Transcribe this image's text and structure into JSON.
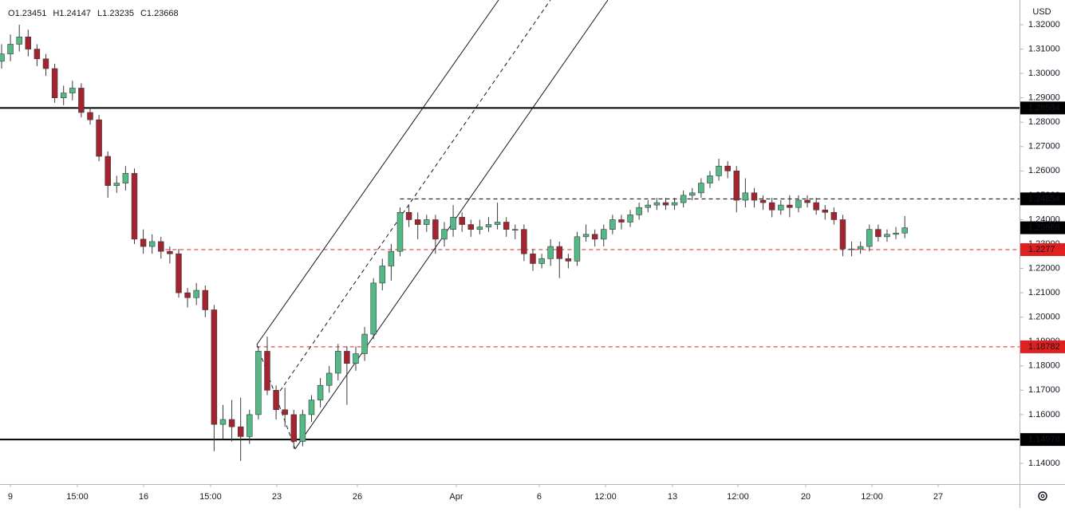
{
  "chart_data": {
    "type": "candlestick",
    "currency": "USD",
    "ohlc_labels": [
      "O",
      "H",
      "L",
      "C"
    ],
    "up_color": "#53b987",
    "down_color": "#a3232f",
    "wick_color": "#3a3a3a",
    "xlim": [
      -0.18,
      114.96
    ],
    "ylim": [
      1.13149,
      1.33015
    ],
    "xticks": [
      {
        "value": 0.99,
        "label": "9"
      },
      {
        "value": 8.56,
        "label": "15:00"
      },
      {
        "value": 16.04,
        "label": "16"
      },
      {
        "value": 23.6,
        "label": "15:00"
      },
      {
        "value": 31.08,
        "label": "23"
      },
      {
        "value": 40.18,
        "label": "26"
      },
      {
        "value": 51.35,
        "label": "Apr"
      },
      {
        "value": 60.72,
        "label": "6"
      },
      {
        "value": 68.2,
        "label": "12:00"
      },
      {
        "value": 75.77,
        "label": "13"
      },
      {
        "value": 83.15,
        "label": "12:00"
      },
      {
        "value": 90.81,
        "label": "20"
      },
      {
        "value": 98.29,
        "label": "12:00"
      },
      {
        "value": 105.77,
        "label": "27"
      }
    ],
    "yticks": [
      {
        "value": 1.32,
        "label": "1.32000"
      },
      {
        "value": 1.31,
        "label": "1.31000"
      },
      {
        "value": 1.3,
        "label": "1.30000"
      },
      {
        "value": 1.29,
        "label": "1.29000"
      },
      {
        "value": 1.28,
        "label": "1.28000"
      },
      {
        "value": 1.27,
        "label": "1.27000"
      },
      {
        "value": 1.26,
        "label": "1.26000"
      },
      {
        "value": 1.25,
        "label": "1.25000"
      },
      {
        "value": 1.24,
        "label": "1.24000"
      },
      {
        "value": 1.23,
        "label": "1.23000"
      },
      {
        "value": 1.22,
        "label": "1.22000"
      },
      {
        "value": 1.21,
        "label": "1.21000"
      },
      {
        "value": 1.2,
        "label": "1.20000"
      },
      {
        "value": 1.19,
        "label": "1.19000"
      },
      {
        "value": 1.18,
        "label": "1.18000"
      },
      {
        "value": 1.17,
        "label": "1.17000"
      },
      {
        "value": 1.16,
        "label": "1.16000"
      },
      {
        "value": 1.15,
        "label": "1.15000"
      },
      {
        "value": 1.14,
        "label": "1.14000"
      }
    ],
    "x": [
      0,
      1,
      2,
      3,
      4,
      5,
      6,
      7,
      8,
      9,
      10,
      11,
      12,
      13,
      14,
      15,
      16,
      17,
      18,
      19,
      20,
      21,
      22,
      23,
      24,
      25,
      26,
      27,
      28,
      29,
      30,
      31,
      32,
      33,
      34,
      35,
      36,
      37,
      38,
      39,
      40,
      41,
      42,
      43,
      44,
      45,
      46,
      47,
      48,
      49,
      50,
      51,
      52,
      53,
      54,
      55,
      56,
      57,
      58,
      59,
      60,
      61,
      62,
      63,
      64,
      65,
      66,
      67,
      68,
      69,
      70,
      71,
      72,
      73,
      74,
      75,
      76,
      77,
      78,
      79,
      80,
      81,
      82,
      83,
      84,
      85,
      86,
      87,
      88,
      89,
      90,
      91,
      92,
      93,
      94,
      95,
      96,
      97,
      98,
      99,
      100,
      101,
      102
    ],
    "open": [
      1.305,
      1.308,
      1.312,
      1.315,
      1.31,
      1.306,
      1.302,
      1.29,
      1.292,
      1.294,
      1.284,
      1.281,
      1.266,
      1.254,
      1.255,
      1.259,
      1.232,
      1.229,
      1.231,
      1.227,
      1.226,
      1.21,
      1.208,
      1.211,
      1.203,
      1.156,
      1.158,
      1.155,
      1.151,
      1.16,
      1.186,
      1.17,
      1.162,
      1.16,
      1.149,
      1.16,
      1.166,
      1.172,
      1.177,
      1.186,
      1.181,
      1.185,
      1.193,
      1.214,
      1.221,
      1.227,
      1.243,
      1.24,
      1.238,
      1.24,
      1.232,
      1.236,
      1.241,
      1.238,
      1.236,
      1.237,
      1.238,
      1.239,
      1.236,
      1.236,
      1.226,
      1.222,
      1.224,
      1.229,
      1.224,
      1.223,
      1.233,
      1.234,
      1.232,
      1.236,
      1.24,
      1.239,
      1.242,
      1.245,
      1.246,
      1.247,
      1.246,
      1.247,
      1.25,
      1.251,
      1.255,
      1.258,
      1.262,
      1.26,
      1.248,
      1.251,
      1.248,
      1.247,
      1.244,
      1.246,
      1.245,
      1.248,
      1.247,
      1.244,
      1.243,
      1.24,
      1.228,
      1.228,
      1.229,
      1.236,
      1.233,
      1.234,
      1.23451
    ],
    "high": [
      1.312,
      1.316,
      1.32,
      1.318,
      1.312,
      1.308,
      1.304,
      1.295,
      1.297,
      1.296,
      1.286,
      1.283,
      1.268,
      1.258,
      1.262,
      1.261,
      1.236,
      1.234,
      1.233,
      1.229,
      1.228,
      1.212,
      1.214,
      1.213,
      1.205,
      1.164,
      1.166,
      1.167,
      1.162,
      1.188,
      1.192,
      1.172,
      1.171,
      1.162,
      1.162,
      1.168,
      1.175,
      1.18,
      1.189,
      1.188,
      1.188,
      1.196,
      1.216,
      1.224,
      1.23,
      1.245,
      1.246,
      1.243,
      1.242,
      1.242,
      1.239,
      1.246,
      1.243,
      1.24,
      1.24,
      1.241,
      1.247,
      1.241,
      1.238,
      1.238,
      1.228,
      1.226,
      1.232,
      1.231,
      1.226,
      1.235,
      1.238,
      1.236,
      1.238,
      1.242,
      1.242,
      1.244,
      1.247,
      1.248,
      1.249,
      1.249,
      1.249,
      1.252,
      1.253,
      1.257,
      1.26,
      1.265,
      1.264,
      1.262,
      1.257,
      1.253,
      1.25,
      1.249,
      1.248,
      1.25,
      1.25,
      1.25,
      1.249,
      1.246,
      1.245,
      1.242,
      1.231,
      1.231,
      1.238,
      1.238,
      1.236,
      1.237,
      1.24147
    ],
    "low": [
      1.302,
      1.305,
      1.309,
      1.307,
      1.303,
      1.299,
      1.288,
      1.287,
      1.289,
      1.282,
      1.279,
      1.264,
      1.249,
      1.251,
      1.252,
      1.23,
      1.226,
      1.226,
      1.224,
      1.222,
      1.208,
      1.204,
      1.205,
      1.2,
      1.145,
      1.15,
      1.149,
      1.141,
      1.148,
      1.158,
      1.168,
      1.158,
      1.155,
      1.146,
      1.147,
      1.157,
      1.163,
      1.169,
      1.174,
      1.164,
      1.178,
      1.182,
      1.191,
      1.211,
      1.215,
      1.225,
      1.237,
      1.232,
      1.235,
      1.226,
      1.229,
      1.233,
      1.235,
      1.233,
      1.234,
      1.235,
      1.236,
      1.233,
      1.232,
      1.223,
      1.219,
      1.22,
      1.221,
      1.216,
      1.22,
      1.221,
      1.231,
      1.229,
      1.229,
      1.234,
      1.236,
      1.237,
      1.24,
      1.243,
      1.244,
      1.244,
      1.244,
      1.245,
      1.248,
      1.249,
      1.253,
      1.256,
      1.257,
      1.243,
      1.245,
      1.245,
      1.244,
      1.241,
      1.242,
      1.241,
      1.243,
      1.245,
      1.242,
      1.24,
      1.238,
      1.225,
      1.225,
      1.226,
      1.227,
      1.231,
      1.231,
      1.232,
      1.23235
    ],
    "close": [
      1.308,
      1.312,
      1.315,
      1.31,
      1.306,
      1.302,
      1.29,
      1.292,
      1.294,
      1.284,
      1.281,
      1.266,
      1.254,
      1.255,
      1.259,
      1.232,
      1.229,
      1.231,
      1.227,
      1.226,
      1.21,
      1.208,
      1.211,
      1.203,
      1.156,
      1.158,
      1.155,
      1.151,
      1.16,
      1.186,
      1.17,
      1.162,
      1.16,
      1.149,
      1.16,
      1.166,
      1.172,
      1.177,
      1.186,
      1.181,
      1.185,
      1.193,
      1.214,
      1.221,
      1.227,
      1.243,
      1.24,
      1.238,
      1.24,
      1.232,
      1.236,
      1.241,
      1.238,
      1.236,
      1.237,
      1.238,
      1.239,
      1.236,
      1.236,
      1.226,
      1.222,
      1.224,
      1.229,
      1.224,
      1.223,
      1.233,
      1.234,
      1.232,
      1.236,
      1.24,
      1.239,
      1.242,
      1.245,
      1.246,
      1.247,
      1.246,
      1.247,
      1.25,
      1.251,
      1.255,
      1.258,
      1.262,
      1.26,
      1.248,
      1.251,
      1.248,
      1.247,
      1.244,
      1.246,
      1.245,
      1.248,
      1.247,
      1.244,
      1.243,
      1.24,
      1.228,
      1.228,
      1.229,
      1.236,
      1.233,
      1.234,
      1.23451,
      1.23668
    ],
    "levels": [
      {
        "price": 1.28584,
        "x_start": -0.18,
        "color": "#000000",
        "dashed": false,
        "label_bg": "#000000"
      },
      {
        "price": 1.24854,
        "x_start": 45,
        "color": "#000000",
        "dashed": true,
        "label_bg": "#000000"
      },
      {
        "price": 1.2277,
        "x_start": 18.5,
        "color": "#e0201f",
        "dashed": true,
        "label_bg": "#e0201f"
      },
      {
        "price": 1.18782,
        "x_start": 28.8,
        "color": "#e0201f",
        "dashed": true,
        "label_bg": "#e0201f"
      },
      {
        "price": 1.14978,
        "x_start": -0.18,
        "color": "#000000",
        "dashed": false,
        "label_bg": "#000000"
      }
    ],
    "current_price_bg": "#000000",
    "channel": [
      {
        "x": [
          28.83,
          56.13
        ],
        "y": [
          1.18876,
          1.33015
        ],
        "dashed": false
      },
      {
        "x": [
          33.15,
          68.47
        ],
        "y": [
          1.1459,
          1.33015
        ],
        "dashed": false
      },
      {
        "x": [
          30.99,
          61.98
        ],
        "y": [
          1.16733,
          1.33015
        ],
        "dashed": true
      },
      {
        "x": [
          28.83,
          33.15
        ],
        "y": [
          1.18876,
          1.1459
        ],
        "dashed": true
      }
    ]
  }
}
